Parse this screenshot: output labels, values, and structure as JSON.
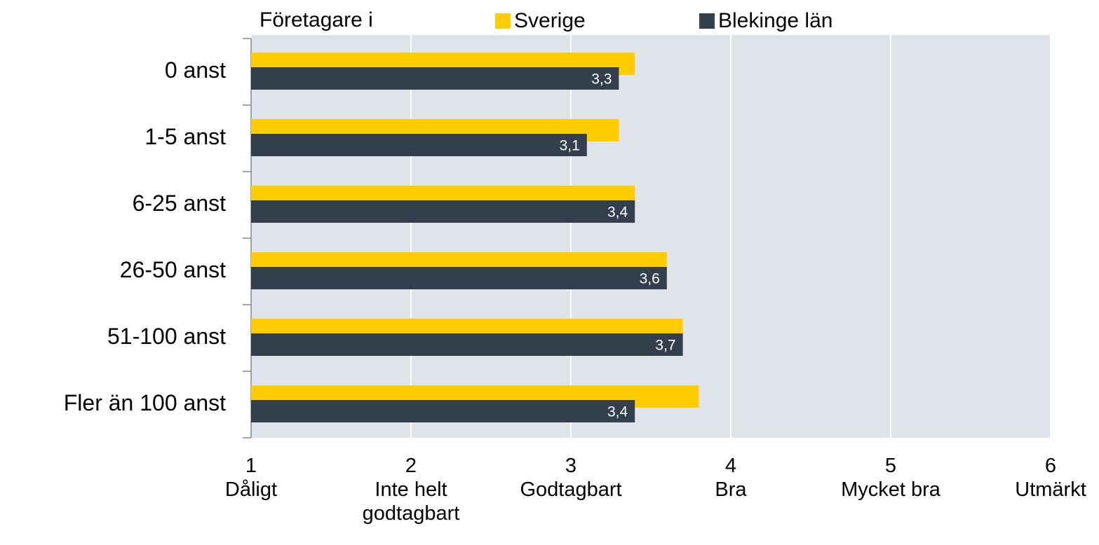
{
  "chart_data": {
    "type": "hbar",
    "legend_title": "Företagare i",
    "categories": [
      "0 anst",
      "1-5 anst",
      "6-25 anst",
      "26-50 anst",
      "51-100 anst",
      "Fler än 100 anst"
    ],
    "series": [
      {
        "name": "Sverige",
        "color": "#FFCC00",
        "values": [
          3.4,
          3.3,
          3.4,
          3.6,
          3.7,
          3.8
        ]
      },
      {
        "name": "Blekinge län",
        "color": "#333F4D",
        "values": [
          3.3,
          3.1,
          3.4,
          3.6,
          3.7,
          3.4
        ],
        "value_labels": [
          "3,3",
          "3,1",
          "3,4",
          "3,6",
          "3,7",
          "3,4"
        ]
      }
    ],
    "xlim": [
      1,
      6
    ],
    "xticks": [
      {
        "value": 1,
        "label": "1\nDåligt"
      },
      {
        "value": 2,
        "label": "2\nInte helt\ngodtagbart"
      },
      {
        "value": 3,
        "label": "3\nGodtagbart"
      },
      {
        "value": 4,
        "label": "4\nBra"
      },
      {
        "value": 5,
        "label": "5\nMycket bra"
      },
      {
        "value": 6,
        "label": "6\nUtmärkt"
      }
    ],
    "grid": true,
    "legend": "top"
  }
}
